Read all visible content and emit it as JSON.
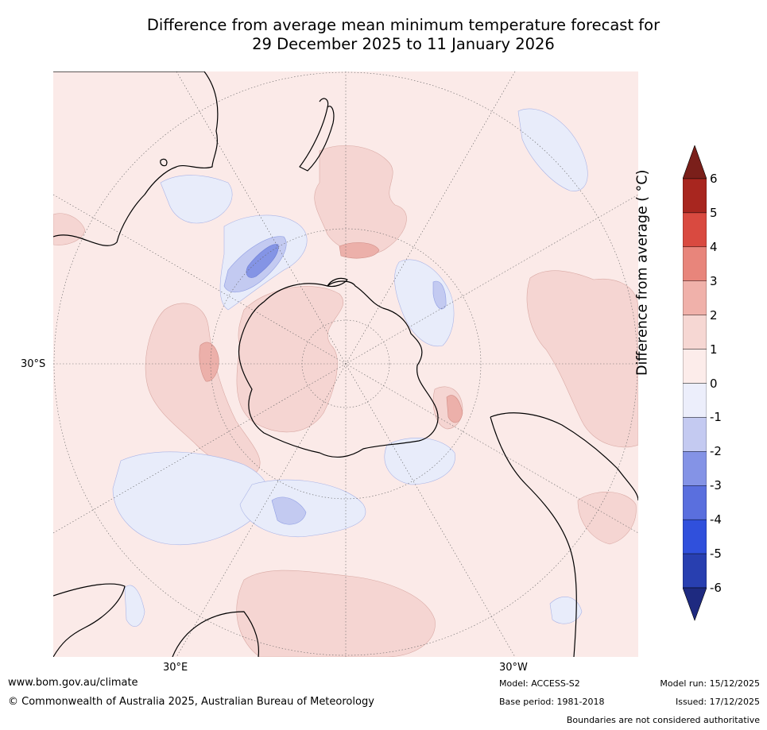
{
  "title": {
    "line1": "Difference from average mean minimum temperature forecast for",
    "line2": "29 December 2025 to 11 January 2026"
  },
  "map": {
    "projection": "south-polar-stereographic",
    "lat_label": "30°S",
    "lon_labels": [
      "30°E",
      "30°W"
    ],
    "colors": {
      "ocean_bg": "#fbeae8",
      "pos1": "#f5d5d2",
      "pos2": "#ecb0aa",
      "neg1": "#e8ecfa",
      "neg2": "#c3caf1",
      "neg3": "#8494e5",
      "coast": "#000000"
    }
  },
  "colorbar": {
    "title": "Difference from average ( °C)",
    "ticks": [
      "6",
      "5",
      "4",
      "3",
      "2",
      "1",
      "0",
      "-1",
      "-2",
      "-3",
      "-4",
      "-5",
      "-6"
    ],
    "band_colors": [
      "#a8261f",
      "#d94a40",
      "#e8857b",
      "#f0b1aa",
      "#f6d7d3",
      "#fcecea",
      "#eceefb",
      "#c4caf1",
      "#8493e6",
      "#5a6fde",
      "#3050dc",
      "#283fb0"
    ],
    "upper_arrow_color": "#7a1f1a",
    "lower_arrow_color": "#1e2a80"
  },
  "footer": {
    "website": "www.bom.gov.au/climate",
    "copyright": "© Commonwealth of Australia 2025, Australian Bureau of Meteorology",
    "model": "Model: ACCESS-S2",
    "base_period": "Base period: 1981-2018",
    "model_run": "Model run: 15/12/2025",
    "issued": "Issued: 17/12/2025",
    "boundaries": "Boundaries are not considered authoritative"
  }
}
